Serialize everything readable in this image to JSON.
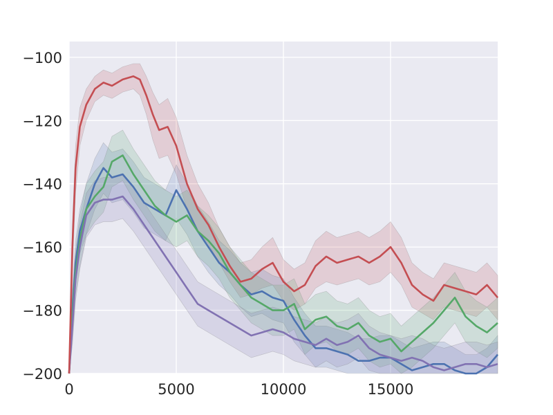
{
  "chart_data": {
    "type": "line",
    "title": "",
    "xlabel": "",
    "ylabel": "",
    "xlim": [
      0,
      20000
    ],
    "ylim": [
      -200,
      -95
    ],
    "x_ticks": [
      0,
      5000,
      10000,
      15000
    ],
    "x_tick_labels": [
      "0",
      "5000",
      "10000",
      "15000"
    ],
    "y_ticks": [
      -200,
      -180,
      -160,
      -140,
      -120,
      -100
    ],
    "y_tick_labels": [
      "−200",
      "−180",
      "−160",
      "−140",
      "−120",
      "−100"
    ],
    "grid": true,
    "background": "#EAEAF2",
    "shaded_bands": true,
    "series": [
      {
        "color": "#C44E52",
        "x": [
          0,
          150,
          300,
          500,
          800,
          1200,
          1600,
          2000,
          2500,
          3000,
          3300,
          3600,
          3900,
          4200,
          4600,
          5000,
          5500,
          6000,
          6500,
          7000,
          7500,
          8000,
          8500,
          9000,
          9500,
          10000,
          10500,
          11000,
          11500,
          12000,
          12500,
          13000,
          13500,
          14000,
          14500,
          15000,
          15500,
          16000,
          16500,
          17000,
          17500,
          18000,
          18500,
          19000,
          19500,
          19999
        ],
        "y": [
          -200,
          -160,
          -135,
          -122,
          -115,
          -110,
          -108,
          -109,
          -107,
          -106,
          -107,
          -112,
          -118,
          -123,
          -122,
          -128,
          -140,
          -148,
          -153,
          -160,
          -166,
          -171,
          -170,
          -167,
          -165,
          -171,
          -174,
          -172,
          -166,
          -163,
          -165,
          -164,
          -163,
          -165,
          -163,
          -160,
          -165,
          -172,
          -175,
          -177,
          -172,
          -173,
          -174,
          -175,
          -172,
          -176
        ],
        "band_y_low": [
          -200,
          -168,
          -143,
          -128,
          -120,
          -114,
          -112,
          -113,
          -111,
          -110,
          -112,
          -118,
          -126,
          -132,
          -131,
          -137,
          -148,
          -155,
          -159,
          -165,
          -171,
          -176,
          -175,
          -173,
          -172,
          -177,
          -180,
          -178,
          -173,
          -171,
          -172,
          -171,
          -170,
          -172,
          -171,
          -168,
          -172,
          -179,
          -181,
          -183,
          -179,
          -180,
          -181,
          -182,
          -179,
          -183
        ],
        "band_y_high": [
          -200,
          -153,
          -128,
          -116,
          -110,
          -106,
          -104,
          -105,
          -103,
          -102,
          -102,
          -106,
          -111,
          -115,
          -113,
          -119,
          -131,
          -140,
          -146,
          -154,
          -160,
          -165,
          -164,
          -160,
          -157,
          -164,
          -167,
          -165,
          -158,
          -155,
          -157,
          -156,
          -155,
          -157,
          -155,
          -152,
          -157,
          -165,
          -168,
          -170,
          -165,
          -166,
          -167,
          -168,
          -165,
          -169
        ]
      },
      {
        "color": "#4C72B0",
        "x": [
          0,
          150,
          300,
          500,
          800,
          1200,
          1600,
          2000,
          2500,
          3000,
          3500,
          4000,
          4500,
          5000,
          5500,
          6000,
          6500,
          7000,
          7500,
          8000,
          8500,
          9000,
          9500,
          10000,
          10500,
          11000,
          11500,
          12000,
          12500,
          13000,
          13500,
          14000,
          14500,
          15000,
          15500,
          16000,
          16500,
          17000,
          17500,
          18000,
          18500,
          19000,
          19500,
          19999
        ],
        "y": [
          -200,
          -180,
          -165,
          -155,
          -148,
          -140,
          -135,
          -138,
          -137,
          -141,
          -146,
          -148,
          -150,
          -142,
          -148,
          -155,
          -160,
          -165,
          -168,
          -172,
          -175,
          -174,
          -176,
          -177,
          -183,
          -188,
          -192,
          -192,
          -193,
          -194,
          -196,
          -196,
          -195,
          -195,
          -197,
          -199,
          -198,
          -197,
          -197,
          -199,
          -200,
          -200,
          -198,
          -194
        ],
        "band_y_low": [
          -200,
          -186,
          -172,
          -162,
          -156,
          -148,
          -143,
          -146,
          -145,
          -149,
          -154,
          -156,
          -158,
          -151,
          -156,
          -163,
          -168,
          -172,
          -175,
          -179,
          -182,
          -181,
          -183,
          -184,
          -190,
          -194,
          -198,
          -198,
          -199,
          -200,
          -200,
          -200,
          -200,
          -200,
          -200,
          -200,
          -200,
          -200,
          -200,
          -200,
          -200,
          -200,
          -200,
          -200
        ],
        "band_y_high": [
          -200,
          -174,
          -158,
          -148,
          -140,
          -132,
          -127,
          -130,
          -129,
          -133,
          -138,
          -140,
          -142,
          -134,
          -140,
          -147,
          -152,
          -158,
          -161,
          -165,
          -168,
          -167,
          -169,
          -170,
          -176,
          -181,
          -185,
          -185,
          -186,
          -187,
          -189,
          -189,
          -188,
          -188,
          -190,
          -192,
          -191,
          -190,
          -190,
          -192,
          -194,
          -194,
          -192,
          -188
        ]
      },
      {
        "color": "#55A868",
        "x": [
          0,
          150,
          300,
          500,
          800,
          1200,
          1600,
          2000,
          2500,
          3000,
          3500,
          4000,
          4500,
          5000,
          5500,
          6000,
          6500,
          7000,
          7500,
          8000,
          8500,
          9000,
          9500,
          10000,
          10500,
          11000,
          11500,
          12000,
          12500,
          13000,
          13500,
          14000,
          14500,
          15000,
          15500,
          16000,
          16500,
          17000,
          17500,
          18000,
          18500,
          19000,
          19500,
          19999
        ],
        "y": [
          -200,
          -182,
          -168,
          -158,
          -148,
          -144,
          -141,
          -133,
          -131,
          -137,
          -142,
          -147,
          -150,
          -152,
          -150,
          -155,
          -158,
          -162,
          -168,
          -172,
          -176,
          -178,
          -180,
          -180,
          -178,
          -186,
          -183,
          -182,
          -185,
          -186,
          -184,
          -188,
          -190,
          -189,
          -193,
          -190,
          -187,
          -184,
          -180,
          -176,
          -182,
          -185,
          -187,
          -184
        ],
        "band_y_low": [
          -200,
          -189,
          -175,
          -166,
          -156,
          -152,
          -149,
          -141,
          -139,
          -145,
          -150,
          -155,
          -158,
          -160,
          -158,
          -163,
          -166,
          -170,
          -176,
          -180,
          -184,
          -186,
          -188,
          -188,
          -186,
          -194,
          -191,
          -190,
          -193,
          -194,
          -192,
          -196,
          -198,
          -197,
          -200,
          -198,
          -195,
          -192,
          -188,
          -184,
          -190,
          -193,
          -195,
          -192
        ],
        "band_y_high": [
          -200,
          -175,
          -161,
          -150,
          -140,
          -136,
          -133,
          -125,
          -123,
          -129,
          -134,
          -139,
          -142,
          -144,
          -142,
          -147,
          -150,
          -154,
          -160,
          -164,
          -168,
          -170,
          -172,
          -172,
          -170,
          -178,
          -175,
          -174,
          -177,
          -178,
          -176,
          -180,
          -182,
          -181,
          -185,
          -182,
          -179,
          -176,
          -172,
          -168,
          -174,
          -177,
          -179,
          -176
        ]
      },
      {
        "color": "#8172B2",
        "x": [
          0,
          150,
          300,
          500,
          800,
          1200,
          1600,
          2000,
          2500,
          3000,
          3500,
          4000,
          4500,
          5000,
          5500,
          6000,
          6500,
          7000,
          7500,
          8000,
          8500,
          9000,
          9500,
          10000,
          10500,
          11000,
          11500,
          12000,
          12500,
          13000,
          13500,
          14000,
          14500,
          15000,
          15500,
          16000,
          16500,
          17000,
          17500,
          18000,
          18500,
          19000,
          19500,
          19999
        ],
        "y": [
          -200,
          -185,
          -170,
          -160,
          -150,
          -146,
          -145,
          -145,
          -144,
          -148,
          -153,
          -158,
          -163,
          -168,
          -173,
          -178,
          -180,
          -182,
          -184,
          -186,
          -188,
          -187,
          -186,
          -187,
          -189,
          -190,
          -191,
          -189,
          -191,
          -190,
          -188,
          -192,
          -194,
          -195,
          -196,
          -195,
          -196,
          -198,
          -199,
          -198,
          -197,
          -197,
          -198,
          -197
        ],
        "band_y_low": [
          -200,
          -191,
          -177,
          -167,
          -157,
          -153,
          -152,
          -152,
          -151,
          -155,
          -160,
          -165,
          -170,
          -175,
          -180,
          -185,
          -187,
          -189,
          -191,
          -193,
          -195,
          -194,
          -193,
          -194,
          -196,
          -197,
          -198,
          -196,
          -198,
          -197,
          -195,
          -199,
          -200,
          -200,
          -200,
          -200,
          -200,
          -200,
          -200,
          -200,
          -200,
          -200,
          -200,
          -200
        ],
        "band_y_high": [
          -200,
          -179,
          -163,
          -153,
          -143,
          -139,
          -138,
          -138,
          -137,
          -141,
          -146,
          -151,
          -156,
          -161,
          -166,
          -171,
          -173,
          -175,
          -177,
          -179,
          -181,
          -180,
          -179,
          -180,
          -182,
          -183,
          -184,
          -182,
          -184,
          -183,
          -181,
          -185,
          -187,
          -188,
          -189,
          -188,
          -189,
          -191,
          -192,
          -191,
          -190,
          -190,
          -191,
          -190
        ]
      }
    ]
  }
}
